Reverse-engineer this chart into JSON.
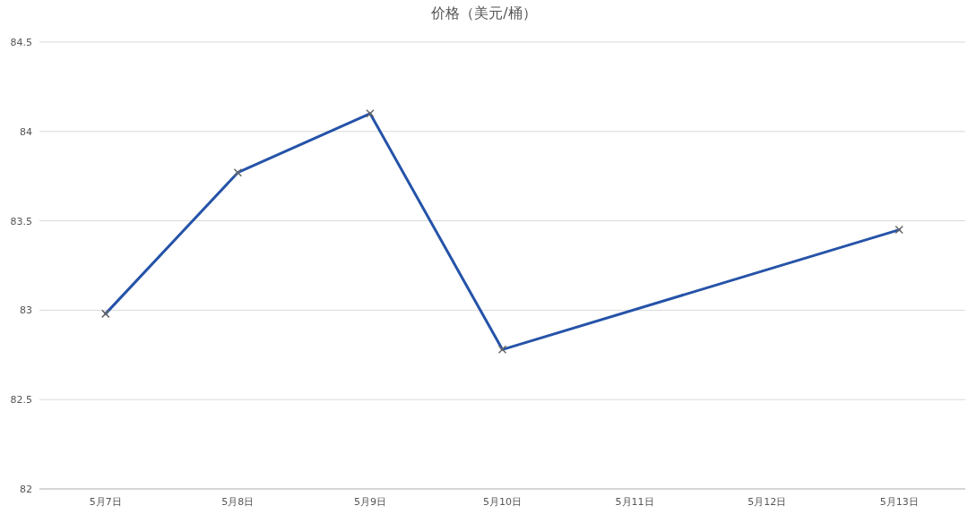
{
  "chart_data": {
    "type": "line",
    "title": "价格（美元/桶）",
    "categories": [
      "5月7日",
      "5月8日",
      "5月9日",
      "5月10日",
      "5月11日",
      "5月12日",
      "5月13日"
    ],
    "series": [
      {
        "color": "#2553a8",
        "x": [
          "5月7日",
          "5月8日",
          "5月9日",
          "5月10日",
          "5月13日"
        ],
        "values": [
          82.98,
          83.77,
          84.1,
          82.78,
          83.45
        ]
      }
    ],
    "ylim": [
      82,
      84.5
    ],
    "yticks": [
      82,
      82.5,
      83,
      83.5,
      84,
      84.5
    ],
    "grid": "y",
    "marker": "cross",
    "line_style": "solid"
  }
}
